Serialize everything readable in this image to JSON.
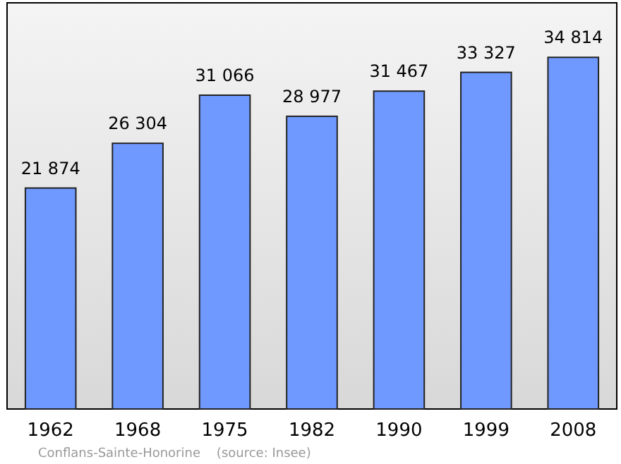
{
  "chart_data": {
    "type": "bar",
    "categories": [
      "1962",
      "1968",
      "1975",
      "1982",
      "1990",
      "1999",
      "2008"
    ],
    "values": [
      21874,
      26304,
      31066,
      28977,
      31467,
      33327,
      34814
    ],
    "value_labels": [
      "21 874",
      "26 304",
      "31 066",
      "28 977",
      "31 467",
      "33 327",
      "34 814"
    ],
    "color": "#7099ff",
    "annotations": [
      "Conflans-Sainte-Honorine    (source: Insee)"
    ]
  }
}
